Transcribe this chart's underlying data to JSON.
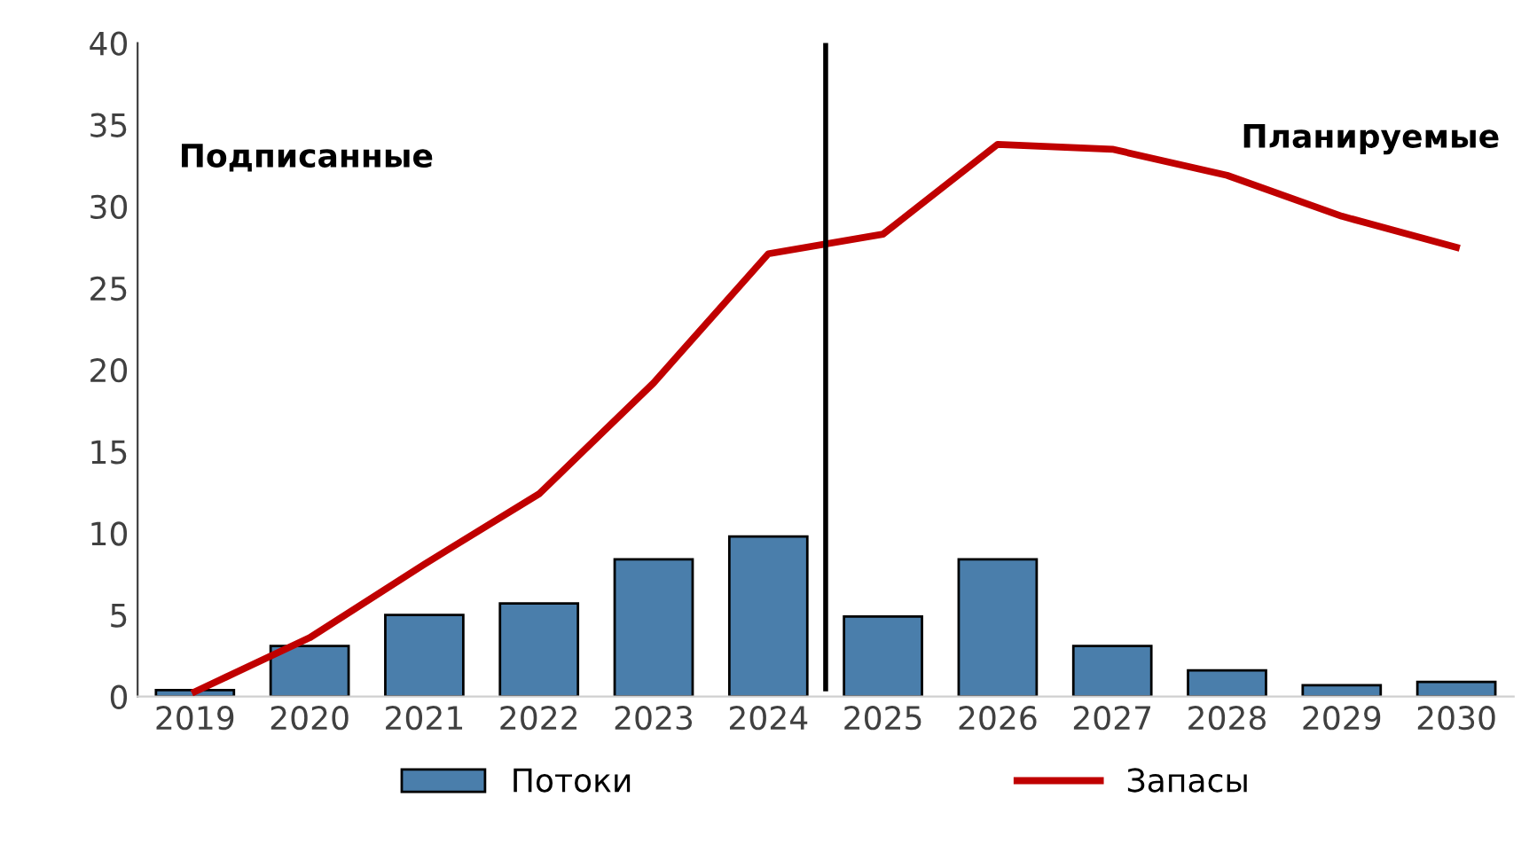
{
  "chart_data": {
    "type": "bar",
    "categories": [
      "2019",
      "2020",
      "2021",
      "2022",
      "2023",
      "2024",
      "2025",
      "2026",
      "2027",
      "2028",
      "2029",
      "2030"
    ],
    "series": [
      {
        "name": "Потоки",
        "color": "#4a7eab",
        "values": [
          0.4,
          3.1,
          5.0,
          5.7,
          8.4,
          9.8,
          4.9,
          8.4,
          3.1,
          1.6,
          0.7,
          0.9
        ]
      },
      {
        "name": "Запасы",
        "type": "line",
        "color": "#c00000",
        "values": [
          0.3,
          3.6,
          8.1,
          12.4,
          19.2,
          27.1,
          28.3,
          33.8,
          33.5,
          31.9,
          29.4,
          27.5
        ]
      }
    ],
    "ylim": [
      0,
      40
    ],
    "yticks": [
      0,
      5,
      10,
      15,
      20,
      25,
      30,
      35,
      40
    ],
    "grid": false,
    "legend": "bottom",
    "marker": "none",
    "line_style": "solid",
    "annotations": [
      "Подписанные",
      "Планируемые"
    ]
  }
}
